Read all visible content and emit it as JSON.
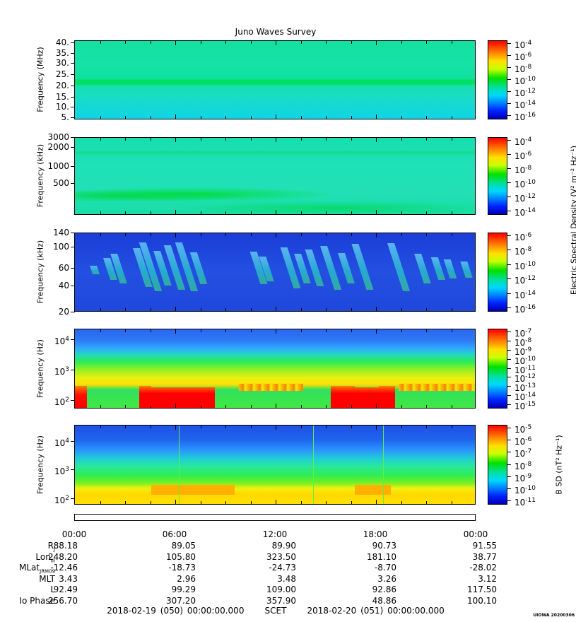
{
  "title": "Juno Waves Survey",
  "panels": [
    {
      "ylabel": "Frequency (MHz)",
      "yticks": [
        "40.",
        "35.",
        "30.",
        "25.",
        "20.",
        "15.",
        "10.",
        "5."
      ],
      "cbar_ticks": [
        "10^-4",
        "10^-6",
        "10^-8",
        "10^-10",
        "10^-12",
        "10^-14",
        "10^-16"
      ]
    },
    {
      "ylabel": "Frequency (kHz)",
      "yticks": [
        "3000",
        "2000",
        "1000",
        "500"
      ],
      "cbar_ticks": [
        "10^-4",
        "10^-6",
        "10^-8",
        "10^-10",
        "10^-12",
        "10^-14"
      ]
    },
    {
      "ylabel": "Frequency (kHz)",
      "yticks": [
        "140",
        "100",
        "60",
        "40",
        "20"
      ],
      "cbar_ticks": [
        "10^-6",
        "10^-8",
        "10^-10",
        "10^-12",
        "10^-14",
        "10^-16"
      ]
    },
    {
      "ylabel": "Frequency (Hz)",
      "yticks": [
        "10^4",
        "10^3",
        "10^2"
      ],
      "cbar_ticks": [
        "10^-7",
        "10^-8",
        "10^-9",
        "10^-10",
        "10^-11",
        "10^-12",
        "10^-13",
        "10^-14",
        "10^-15"
      ]
    },
    {
      "ylabel": "Frequency (Hz)",
      "yticks": [
        "10^4",
        "10^3",
        "10^2"
      ],
      "cbar_ticks": [
        "10^-5",
        "10^-6",
        "10^-7",
        "10^-8",
        "10^-9",
        "10^-10",
        "10^-11"
      ]
    }
  ],
  "efield_label": "Electric Spectral Density (V² m⁻² Hz⁻¹)",
  "bfield_label": "B SD (nT² Hz⁻¹)",
  "time_labels": [
    "00:00",
    "06:00",
    "12:00",
    "18:00",
    "00:00"
  ],
  "ephemeris": [
    {
      "label": "R",
      "sub": "J",
      "values": [
        "88.18",
        "89.05",
        "89.90",
        "90.73",
        "91.55"
      ]
    },
    {
      "label": "Lon",
      "sub": "III",
      "values": [
        "248.20",
        "105.80",
        "323.50",
        "181.10",
        "38.77"
      ]
    },
    {
      "label": "MLat",
      "sub": "JRM09",
      "values": [
        "-12.46",
        "-18.73",
        "-24.73",
        "-8.70",
        "-28.02"
      ]
    },
    {
      "label": "MLT",
      "sub": "",
      "values": [
        "3.43",
        "2.96",
        "3.48",
        "3.26",
        "3.12"
      ]
    },
    {
      "label": "L",
      "sub": "",
      "values": [
        "92.49",
        "99.29",
        "109.00",
        "92.86",
        "117.50"
      ]
    },
    {
      "label": "Io Phase",
      "sub": "",
      "values": [
        "256.70",
        "307.20",
        "357.90",
        "48.86",
        "100.10"
      ]
    }
  ],
  "footer": {
    "start": "2018-02-19 (050) 00:00:00.000",
    "frame": "SCET",
    "end": "2018-02-20 (051) 00:00:00.000"
  },
  "stamp": "UIOWA 20200306",
  "colors": {
    "min": "#0000c8",
    "low": "#00a0ff",
    "mid": "#00e07a",
    "hi": "#ffff00",
    "max": "#ff0000"
  },
  "chart_data": {
    "type": "heatmap",
    "title": "Juno Waves Survey",
    "x_range": [
      "2018-02-19 (050) 00:00:00.000",
      "2018-02-20 (051) 00:00:00.000"
    ],
    "x_ticks": [
      "00:00",
      "06:00",
      "12:00",
      "18:00",
      "00:00"
    ],
    "panels": [
      {
        "ylabel": "Frequency (MHz)",
        "ylim": [
          3,
          41
        ],
        "yscale": "linear",
        "zlabel": "Electric Spectral Density (V² m⁻² Hz⁻¹)",
        "zlim": [
          "10^-17",
          "10^-4"
        ]
      },
      {
        "ylabel": "Frequency (kHz)",
        "ylim": [
          140,
          3000
        ],
        "yscale": "log",
        "zlabel": "Electric Spectral Density (V² m⁻² Hz⁻¹)",
        "zlim": [
          "10^-15",
          "10^-4"
        ]
      },
      {
        "ylabel": "Frequency (kHz)",
        "ylim": [
          20,
          140
        ],
        "yscale": "log",
        "zlabel": "Electric Spectral Density (V² m⁻² Hz⁻¹)",
        "zlim": [
          "10^-16",
          "10^-6"
        ]
      },
      {
        "ylabel": "Frequency (Hz)",
        "ylim": [
          50,
          20000
        ],
        "yscale": "log",
        "zlabel": "Electric Spectral Density (V² m⁻² Hz⁻¹)",
        "zlim": [
          "10^-15",
          "10^-7"
        ]
      },
      {
        "ylabel": "Frequency (Hz)",
        "ylim": [
          50,
          20000
        ],
        "yscale": "log",
        "zlabel": "B SD (nT² Hz⁻¹)",
        "zlim": [
          "10^-11",
          "10^-5"
        ]
      }
    ]
  }
}
